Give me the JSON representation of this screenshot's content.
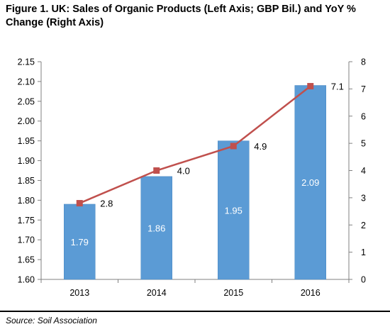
{
  "title": "Figure 1. UK: Sales of Organic Products (Left Axis; GBP Bil.) and YoY % Change (Right Axis)",
  "source": "Source: Soil Association",
  "colors": {
    "bar": "#5b9bd5",
    "bar_edge": "#4a88c2",
    "line": "#c0504d",
    "axis": "#808080"
  },
  "chart_data": {
    "type": "bar",
    "title": "Figure 1. UK: Sales of Organic Products (Left Axis; GBP Bil.) and YoY % Change (Right Axis)",
    "categories": [
      "2013",
      "2014",
      "2015",
      "2016"
    ],
    "series": [
      {
        "kind": "bar",
        "axis": "left",
        "values": [
          1.79,
          1.86,
          1.95,
          2.09
        ],
        "labels": [
          "1.79",
          "1.86",
          "1.95",
          "2.09"
        ]
      },
      {
        "kind": "line",
        "axis": "right",
        "marker": "square",
        "values": [
          2.8,
          4.0,
          4.9,
          7.1
        ],
        "labels": [
          "2.8",
          "4.0",
          "4.9",
          "7.1"
        ]
      }
    ],
    "ylim": [
      1.6,
      2.15
    ],
    "yticks": [
      "1.60",
      "1.65",
      "1.70",
      "1.75",
      "1.80",
      "1.85",
      "1.90",
      "1.95",
      "2.00",
      "2.05",
      "2.10",
      "2.15"
    ],
    "y2lim": [
      0,
      8
    ],
    "y2ticks": [
      "0",
      "1",
      "2",
      "3",
      "4",
      "5",
      "6",
      "7",
      "8"
    ],
    "grid": false,
    "legend": "none"
  }
}
